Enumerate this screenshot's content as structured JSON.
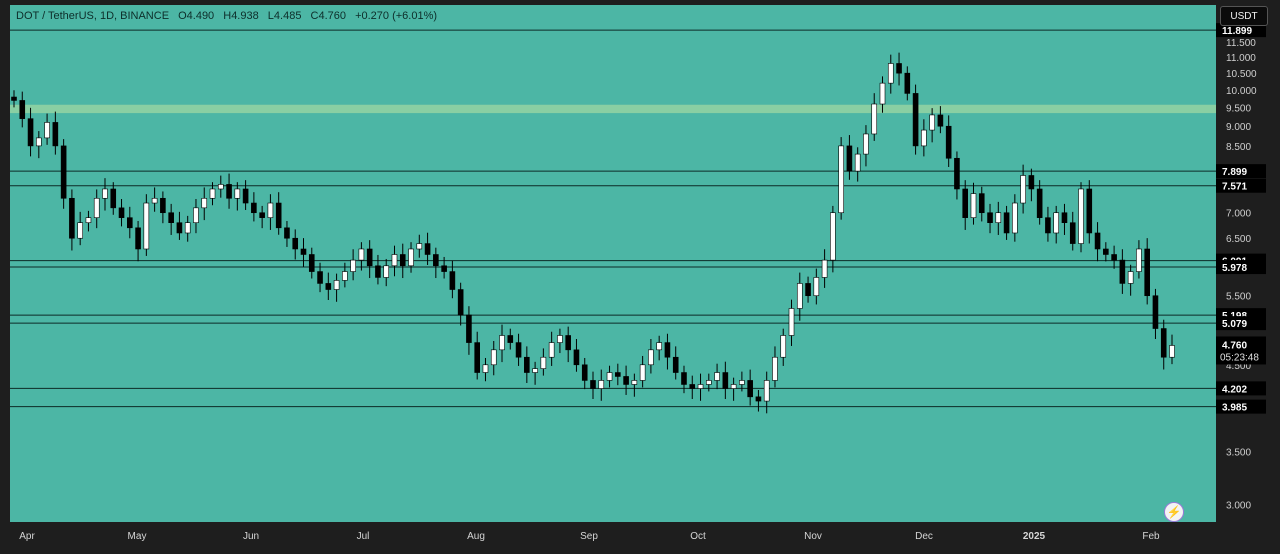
{
  "header": {
    "pair": "DOT / TetherUS, 1D, BINANCE",
    "open": "O4.490",
    "high": "H4.938",
    "low": "L4.485",
    "close": "C4.760",
    "change": "+0.270 (+6.01%)"
  },
  "currency_button": "USDT",
  "countdown": "05:23:48",
  "colors": {
    "background": "#4cb6a5",
    "up_candle": "#ffffff",
    "down_candle": "#000000",
    "zone": "#9ed7a3",
    "line": "#0d2a27"
  },
  "icons": [
    "lightning-icon"
  ],
  "chart_data": {
    "type": "candlestick",
    "scale": "log",
    "ylim": [
      2.85,
      12.8
    ],
    "grid": false,
    "x_labels": [
      "Apr",
      "May",
      "Jun",
      "Jul",
      "Aug",
      "Sep",
      "Oct",
      "Nov",
      "Dec",
      "2025",
      "Feb"
    ],
    "y_ticks": [
      "3.000",
      "3.500",
      "4.500",
      "5.500",
      "6.500",
      "7.000",
      "8.500",
      "9.000",
      "9.500",
      "10.000",
      "10.500",
      "11.000",
      "11.500"
    ],
    "levels": [
      "11.899",
      "7.899",
      "7.571",
      "6.091",
      "5.978",
      "5.198",
      "5.079",
      "4.202",
      "3.985"
    ],
    "current_price": "4.760",
    "supply_zone": [
      9.35,
      9.58
    ],
    "series": [
      {
        "m": "Apr",
        "c": [
          9.7,
          9.2,
          8.5,
          8.7,
          9.1,
          8.5,
          7.3,
          6.5,
          6.8,
          6.9,
          7.3,
          7.5,
          7.1,
          6.9,
          6.7,
          6.3
        ]
      },
      {
        "m": "May",
        "c": [
          7.2,
          7.3,
          7.0,
          6.8,
          6.6,
          6.8,
          7.1,
          7.3,
          7.5,
          7.6,
          7.3,
          7.5,
          7.2,
          7.0,
          6.9
        ]
      },
      {
        "m": "Jun",
        "c": [
          7.2,
          6.7,
          6.5,
          6.3,
          6.2,
          5.9,
          5.7,
          5.6,
          5.75,
          5.9,
          6.1,
          6.3,
          6.0,
          5.8,
          6.0
        ]
      },
      {
        "m": "Jul",
        "c": [
          6.2,
          6.0,
          6.3,
          6.4,
          6.2,
          6.0,
          5.9,
          5.6,
          5.2,
          4.8,
          4.4,
          4.5,
          4.7,
          4.9,
          4.8
        ]
      },
      {
        "m": "Aug",
        "c": [
          4.6,
          4.4,
          4.45,
          4.6,
          4.8,
          4.9,
          4.7,
          4.5,
          4.3,
          4.2,
          4.3,
          4.4,
          4.35,
          4.25,
          4.3
        ]
      },
      {
        "m": "Sep",
        "c": [
          4.5,
          4.7,
          4.8,
          4.6,
          4.4,
          4.25,
          4.2,
          4.25,
          4.3,
          4.4,
          4.2,
          4.25,
          4.3,
          4.1,
          4.05
        ]
      },
      {
        "m": "Oct",
        "c": [
          4.3,
          4.6,
          4.9,
          5.3,
          5.7,
          5.5,
          5.8,
          6.1,
          7.0,
          8.5,
          7.9,
          8.3,
          8.8,
          9.6,
          10.2,
          10.8,
          10.5,
          9.9
        ]
      },
      {
        "m": "Dec",
        "c": [
          8.5,
          8.9,
          9.3,
          9.0,
          8.2,
          7.5,
          6.9,
          7.4,
          7.0,
          6.8,
          7.0,
          6.6,
          7.2,
          7.8,
          7.5,
          6.9,
          6.6,
          7.0,
          6.8,
          6.4
        ]
      },
      {
        "m": "2025",
        "c": [
          7.5,
          6.6,
          6.3,
          6.2,
          6.1,
          5.7,
          5.9,
          6.3,
          5.5,
          5.0,
          4.6,
          4.76
        ]
      }
    ]
  }
}
